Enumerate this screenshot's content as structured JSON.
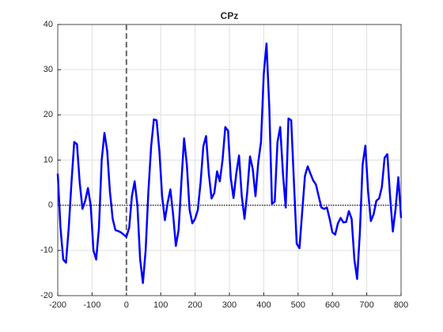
{
  "chart_data": {
    "type": "line",
    "title": "CPz",
    "x": [
      -200,
      -192,
      -184,
      -176,
      -168,
      -160,
      -152,
      -144,
      -136,
      -128,
      -120,
      -112,
      -104,
      -96,
      -88,
      -80,
      -72,
      -64,
      -56,
      -48,
      -40,
      -32,
      -24,
      -16,
      -8,
      0,
      8,
      16,
      24,
      32,
      40,
      48,
      56,
      64,
      72,
      80,
      88,
      96,
      104,
      112,
      120,
      128,
      136,
      144,
      152,
      160,
      168,
      176,
      184,
      192,
      200,
      208,
      216,
      224,
      232,
      240,
      248,
      256,
      264,
      272,
      280,
      288,
      296,
      304,
      312,
      320,
      328,
      336,
      344,
      352,
      360,
      368,
      376,
      384,
      392,
      400,
      408,
      416,
      424,
      432,
      440,
      448,
      456,
      464,
      472,
      480,
      488,
      496,
      504,
      512,
      520,
      528,
      536,
      544,
      552,
      560,
      568,
      576,
      584,
      592,
      600,
      608,
      616,
      624,
      632,
      640,
      648,
      656,
      664,
      672,
      680,
      688,
      696,
      704,
      712,
      720,
      728,
      736,
      744,
      752,
      760,
      768,
      776,
      784,
      792,
      800
    ],
    "series": [
      {
        "color": "#0000ff",
        "values": [
          7,
          -5,
          -12,
          -12.7,
          -5,
          5,
          14,
          13.5,
          5,
          -0.8,
          1,
          3.8,
          0,
          -10,
          -12,
          -5,
          10,
          16,
          12,
          3,
          -3,
          -5.5,
          -5.7,
          -6,
          -6.5,
          -7,
          -5,
          2,
          5.3,
          0,
          -12,
          -17.2,
          -10,
          3,
          13,
          19,
          18.8,
          12,
          2,
          -3.3,
          0.5,
          3.5,
          -2,
          -9,
          -5.5,
          5,
          14.8,
          9,
          -1,
          -4,
          -3,
          -1,
          5,
          13,
          15.3,
          7,
          1.5,
          2.7,
          7.5,
          5.3,
          10,
          17.3,
          16.5,
          6,
          1.6,
          7,
          11,
          2,
          -3,
          3,
          10.8,
          8,
          2,
          9.5,
          14,
          29,
          35.8,
          22,
          0.3,
          0.8,
          14,
          17.3,
          7,
          -0.5,
          19.2,
          18.8,
          5,
          -8.5,
          -9.5,
          -1.5,
          6.5,
          8.6,
          7,
          5.5,
          4.6,
          2,
          -0.5,
          -0.8,
          -0.5,
          -3,
          -6,
          -6.5,
          -4,
          -2.8,
          -3.8,
          -3.7,
          -1.3,
          -3,
          -12,
          -16.3,
          -6,
          9,
          13.2,
          3,
          -3.5,
          -2,
          1,
          1.5,
          4,
          10.5,
          11.3,
          2,
          -5.8,
          -0.8,
          6.2,
          -2.8
        ]
      }
    ],
    "xlim": [
      -200,
      800
    ],
    "xticks": [
      -200,
      -100,
      0,
      100,
      200,
      300,
      400,
      500,
      600,
      700,
      800
    ],
    "ylim": [
      -20,
      40
    ],
    "yticks": [
      -20,
      -10,
      0,
      10,
      20,
      30,
      40
    ],
    "grid": true,
    "vline": 0,
    "hline": 0
  }
}
